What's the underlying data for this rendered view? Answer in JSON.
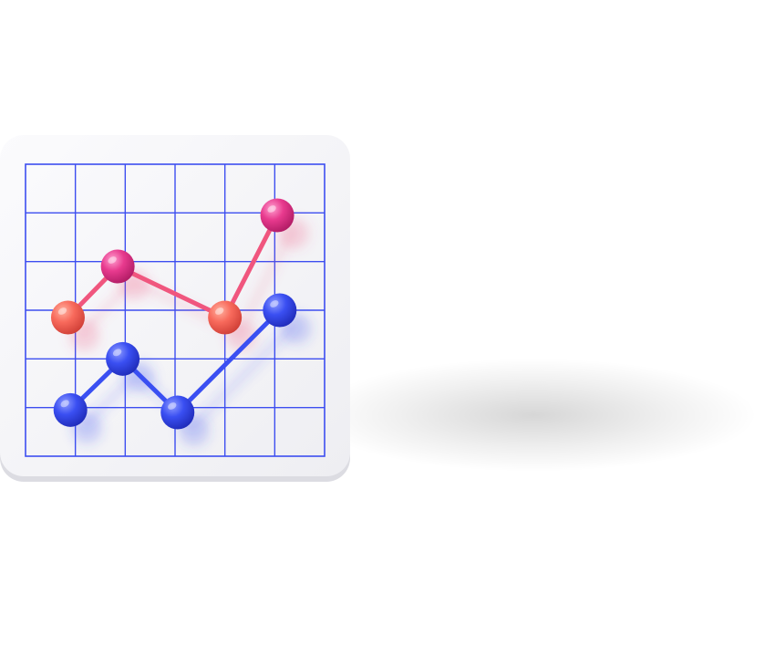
{
  "illustration": {
    "subject": "line-chart-icon",
    "colors": {
      "background": "#ffffff",
      "card": "#f5f5f7",
      "card_edge": "#dcdce2",
      "grid": "#3d4ef0",
      "series_upper_line": "#f0567e",
      "series_upper_point_magenta": "#e83a8e",
      "series_upper_point_coral": "#f86a5c",
      "series_lower": "#3a4ff2"
    },
    "grid": {
      "columns": 6,
      "rows": 6
    }
  },
  "chart_data": {
    "type": "line",
    "xlim": [
      0,
      6
    ],
    "ylim": [
      0,
      6
    ],
    "grid": true,
    "series": [
      {
        "color": "#f0567e",
        "points": [
          {
            "x": 0.85,
            "y": 2.85,
            "tone": "coral"
          },
          {
            "x": 1.85,
            "y": 3.9,
            "tone": "magenta"
          },
          {
            "x": 4.0,
            "y": 2.85,
            "tone": "coral"
          },
          {
            "x": 5.05,
            "y": 4.95,
            "tone": "magenta"
          }
        ]
      },
      {
        "color": "#3a4ff2",
        "points": [
          {
            "x": 0.9,
            "y": 0.95,
            "tone": "blue"
          },
          {
            "x": 1.95,
            "y": 2.0,
            "tone": "blue"
          },
          {
            "x": 3.05,
            "y": 0.9,
            "tone": "blue"
          },
          {
            "x": 5.1,
            "y": 3.0,
            "tone": "blue"
          }
        ]
      }
    ]
  }
}
